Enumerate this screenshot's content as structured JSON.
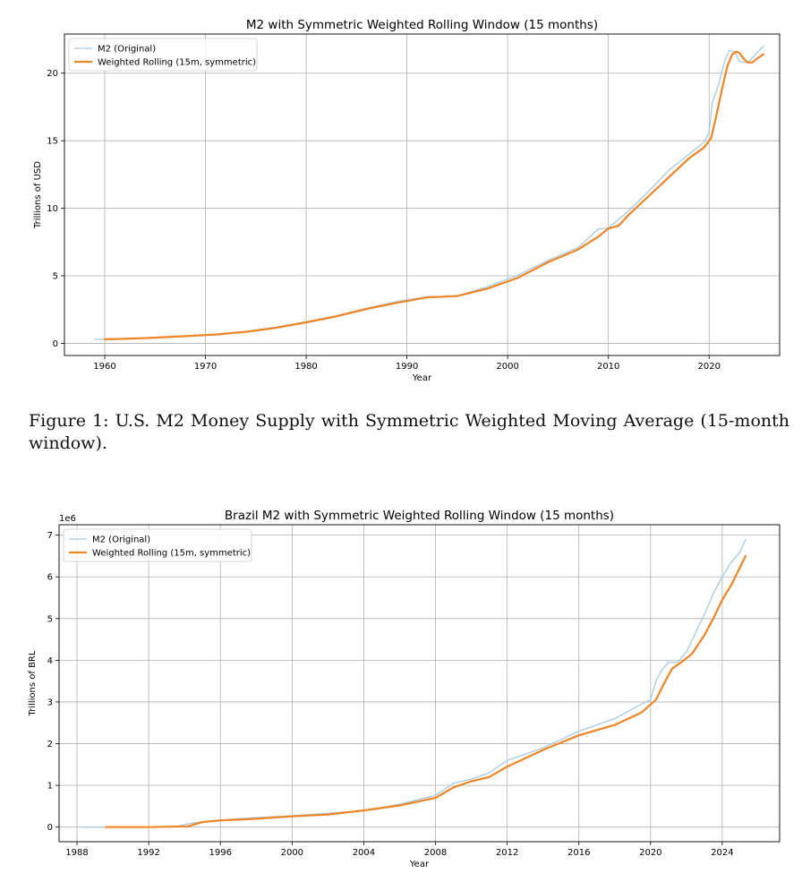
{
  "chart_data": [
    {
      "type": "line",
      "title": "M2 with Symmetric Weighted Rolling Window (15 months)",
      "xlabel": "Year",
      "ylabel": "Trillions of USD",
      "xlim": [
        1956,
        2027
      ],
      "ylim": [
        -0.9,
        22.9
      ],
      "xticks": [
        1960,
        1970,
        1980,
        1990,
        2000,
        2010,
        2020
      ],
      "yticks": [
        0,
        5,
        10,
        15,
        20
      ],
      "grid": true,
      "legend_position": "top-left",
      "series": [
        {
          "name": "M2 (Original)",
          "color": "#a6cbe3",
          "x": [
            1959,
            1962,
            1965,
            1968,
            1971,
            1974,
            1977,
            1980,
            1983,
            1986,
            1989,
            1992,
            1995,
            1998,
            2001,
            2004,
            2007,
            2009,
            2010,
            2012,
            2014,
            2016,
            2018,
            2019.5,
            2020.0,
            2020.3,
            2020.6,
            2021,
            2021.5,
            2022,
            2022.5,
            2023,
            2023.5,
            2024,
            2024.5,
            2025.0,
            2025.4
          ],
          "y": [
            0.29,
            0.33,
            0.44,
            0.55,
            0.67,
            0.88,
            1.2,
            1.6,
            2.05,
            2.6,
            3.1,
            3.45,
            3.5,
            4.2,
            5.05,
            6.15,
            7.1,
            8.45,
            8.55,
            9.8,
            11.25,
            12.8,
            14.0,
            14.9,
            15.6,
            17.8,
            18.4,
            19.3,
            20.8,
            21.7,
            21.6,
            20.9,
            20.8,
            20.9,
            21.3,
            21.7,
            22.0
          ]
        },
        {
          "name": "Weighted Rolling (15m, symmetric)",
          "color": "#f08526",
          "x": [
            1960,
            1962,
            1965,
            1968,
            1971,
            1974,
            1977,
            1980,
            1983,
            1986,
            1989,
            1992,
            1995,
            1998,
            2001,
            2004,
            2007,
            2009,
            2010,
            2011,
            2012,
            2014,
            2016,
            2018,
            2019.5,
            2020.2,
            2020.7,
            2021.3,
            2021.8,
            2022.3,
            2022.7,
            2023.0,
            2023.4,
            2023.8,
            2024.3,
            2024.8,
            2025.4
          ],
          "y": [
            0.3,
            0.33,
            0.42,
            0.53,
            0.65,
            0.85,
            1.15,
            1.55,
            2.0,
            2.55,
            3.0,
            3.4,
            3.5,
            4.05,
            4.85,
            6.0,
            6.95,
            7.9,
            8.5,
            8.7,
            9.5,
            10.9,
            12.3,
            13.7,
            14.5,
            15.2,
            16.8,
            18.9,
            20.5,
            21.4,
            21.6,
            21.5,
            21.1,
            20.8,
            20.8,
            21.1,
            21.4
          ]
        }
      ]
    },
    {
      "type": "line",
      "title": "Brazil M2 with Symmetric Weighted Rolling Window (15 months)",
      "xlabel": "Year",
      "ylabel": "Trillions of BRL",
      "y_offset_label": "1e6",
      "xlim": [
        1987,
        2027.2
      ],
      "ylim": [
        -0.35,
        7.25
      ],
      "xticks": [
        1988,
        1992,
        1996,
        2000,
        2004,
        2008,
        2012,
        2016,
        2020,
        2024
      ],
      "yticks": [
        0,
        1,
        2,
        3,
        4,
        5,
        6,
        7
      ],
      "grid": true,
      "legend_position": "top-left",
      "series": [
        {
          "name": "M2 (Original)",
          "color": "#a6cbe3",
          "x": [
            1988.4,
            1990,
            1992,
            1993.5,
            1994.2,
            1995,
            1996,
            1998,
            2000,
            2002,
            2004,
            2006,
            2008,
            2009,
            2010,
            2011,
            2012,
            2014,
            2016,
            2018,
            2019.5,
            2020.0,
            2020.3,
            2020.6,
            2021,
            2021.5,
            2022,
            2022.5,
            2023,
            2023.5,
            2024,
            2024.5,
            2025.0,
            2025.3
          ],
          "y": [
            0.0,
            0.0,
            0.0,
            0.01,
            0.08,
            0.13,
            0.17,
            0.23,
            0.27,
            0.33,
            0.4,
            0.55,
            0.76,
            1.05,
            1.15,
            1.3,
            1.6,
            1.9,
            2.3,
            2.6,
            2.95,
            3.05,
            3.5,
            3.75,
            3.95,
            3.95,
            4.2,
            4.65,
            5.1,
            5.6,
            6.0,
            6.35,
            6.6,
            6.9
          ]
        },
        {
          "name": "Weighted Rolling (15m, symmetric)",
          "color": "#f08526",
          "x": [
            1989.6,
            1992,
            1994.2,
            1995,
            1996,
            1998,
            2000,
            2002,
            2004,
            2006,
            2008,
            2009,
            2010,
            2011,
            2012,
            2014,
            2016,
            2018,
            2019.5,
            2020.3,
            2020.7,
            2021.2,
            2021.7,
            2022.3,
            2023,
            2023.5,
            2024,
            2024.5,
            2025.3
          ],
          "y": [
            0.0,
            0.0,
            0.02,
            0.12,
            0.16,
            0.2,
            0.26,
            0.3,
            0.4,
            0.52,
            0.7,
            0.95,
            1.1,
            1.2,
            1.45,
            1.85,
            2.2,
            2.45,
            2.75,
            3.05,
            3.4,
            3.8,
            3.95,
            4.15,
            4.6,
            5.0,
            5.45,
            5.8,
            6.5
          ]
        }
      ]
    }
  ],
  "captions": {
    "figure1": "Figure 1: U.S. M2 Money Supply with Symmetric Weighted Moving Average (15-month window)."
  }
}
